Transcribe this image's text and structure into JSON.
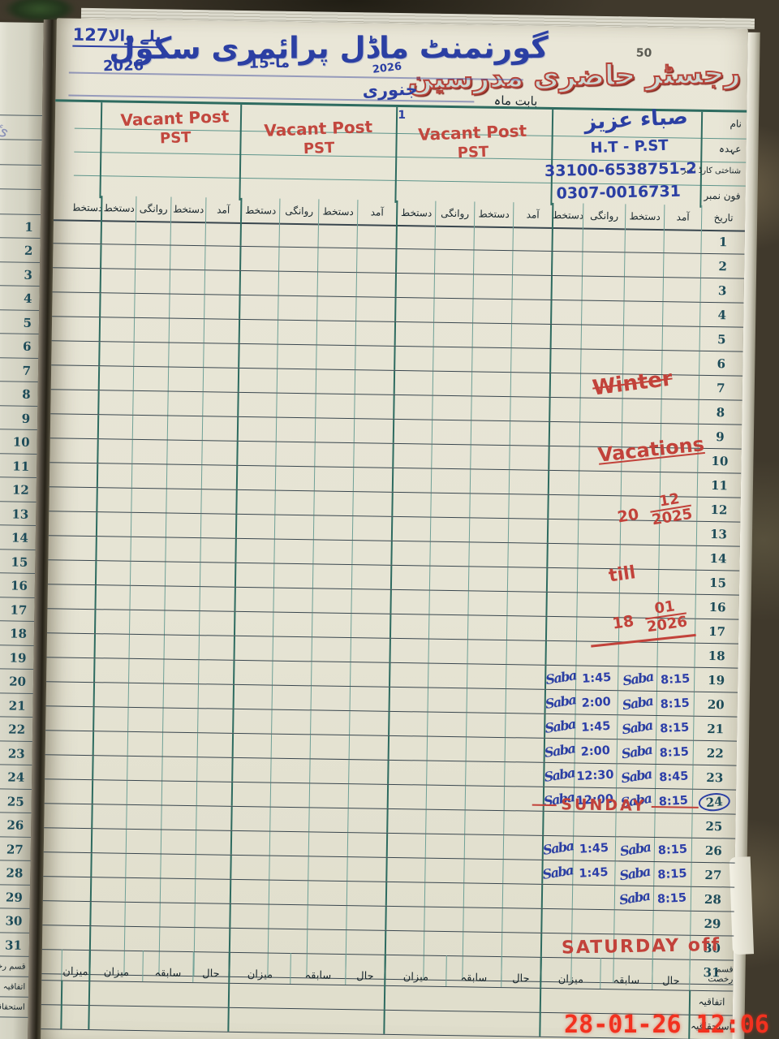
{
  "header": {
    "serial_number": "127",
    "serial_place": "بلے والا",
    "school_name": "گورنمنٹ ماڈل پرائمری سکول",
    "code": "ما-15",
    "year_left": "2026",
    "page_number": "50",
    "register_title": "رجسٹر حاضری مدرسین",
    "month_label": "بابت ماہ",
    "month_value": "جنوری",
    "month_year": "2026"
  },
  "info": {
    "labels": {
      "name": "نام",
      "designation": "عہدہ",
      "cnic": "شناختی کارڈ نمبر",
      "phone": "فون نمبر"
    },
    "teacher": {
      "name": "صباء عزیز",
      "designation": "H.T - P.ST",
      "cnic": "33100-6538751-2",
      "phone": "0307-0016731"
    },
    "vacant_blocks": [
      {
        "line1": "Vacant Post",
        "line2": "PST"
      },
      {
        "line1": "Vacant Post",
        "line2": "PST"
      },
      {
        "line1": "Vacant Post",
        "line2": "PST",
        "note": "1"
      }
    ]
  },
  "table": {
    "date_header": "تاریخ",
    "sub_headers": [
      "آمد",
      "دستخط",
      "روانگی",
      "دستخط"
    ],
    "days": 31,
    "circled_day": 24
  },
  "attendance": [
    {
      "day": 19,
      "arrival": "8:15",
      "arr_sig": "Saba",
      "departure": "1:45",
      "dep_sig": "Saba"
    },
    {
      "day": 20,
      "arrival": "8:15",
      "arr_sig": "Saba",
      "departure": "2:00",
      "dep_sig": "Saba"
    },
    {
      "day": 21,
      "arrival": "8:15",
      "arr_sig": "Saba",
      "departure": "1:45",
      "dep_sig": "Saba"
    },
    {
      "day": 22,
      "arrival": "8:15",
      "arr_sig": "Saba",
      "departure": "2:00",
      "dep_sig": "Saba"
    },
    {
      "day": 23,
      "arrival": "8:45",
      "arr_sig": "Saba",
      "departure": "12:30",
      "dep_sig": "Saba"
    },
    {
      "day": 24,
      "arrival": "8:15",
      "arr_sig": "Saba",
      "departure": "12:00",
      "dep_sig": "Saba"
    },
    {
      "day": 26,
      "arrival": "8:15",
      "arr_sig": "Saba",
      "departure": "1:45",
      "dep_sig": "Saba"
    },
    {
      "day": 27,
      "arrival": "8:15",
      "arr_sig": "Saba",
      "departure": "1:45",
      "dep_sig": "Saba"
    },
    {
      "day": 28,
      "arrival": "8:15",
      "arr_sig": "Saba"
    }
  ],
  "annotations": {
    "winter": "Winter",
    "vacations": "Vacations",
    "start_day": "20",
    "start_month": "12",
    "start_year": "2025",
    "till": "till",
    "end_day": "18",
    "end_month": "01",
    "end_year": "2026",
    "sunday": "SUNDAY",
    "saturday_off": "SATURDAY off"
  },
  "footer": {
    "leave_type": "قسم رخصت",
    "cols": [
      "حال",
      "سابقہ",
      "میزان"
    ],
    "rows": [
      "اتفاقیہ",
      "استحقاقیہ"
    ]
  },
  "side_page": {
    "footer_labels": [
      "قسم رخصت",
      "اتفاقیہ",
      "استحقاقیہ"
    ]
  },
  "camera_timestamp": "28-01-26 12:06"
}
